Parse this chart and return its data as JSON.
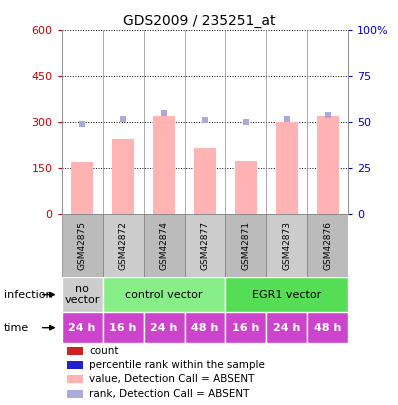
{
  "title": "GDS2009 / 235251_at",
  "samples": [
    "GSM42875",
    "GSM42872",
    "GSM42874",
    "GSM42877",
    "GSM42871",
    "GSM42873",
    "GSM42876"
  ],
  "bar_values": [
    170,
    245,
    320,
    215,
    175,
    300,
    320
  ],
  "rank_values": [
    49,
    52,
    55,
    51,
    50,
    52,
    54
  ],
  "ylim_left": [
    0,
    600
  ],
  "ylim_right": [
    0,
    100
  ],
  "yticks_left": [
    0,
    150,
    300,
    450,
    600
  ],
  "yticks_right": [
    0,
    25,
    50,
    75,
    100
  ],
  "bar_color_absent": "#ffb3b3",
  "rank_color_absent": "#aaaadd",
  "infection_data": [
    {
      "label": "no\nvector",
      "start": 0,
      "end": 1,
      "color": "#cccccc"
    },
    {
      "label": "control vector",
      "start": 1,
      "end": 4,
      "color": "#88ee88"
    },
    {
      "label": "EGR1 vector",
      "start": 4,
      "end": 7,
      "color": "#55dd55"
    }
  ],
  "time_labels": [
    "24 h",
    "16 h",
    "24 h",
    "48 h",
    "16 h",
    "24 h",
    "48 h"
  ],
  "time_color": "#cc44cc",
  "legend_items": [
    {
      "color": "#cc2222",
      "label": "count"
    },
    {
      "color": "#2222cc",
      "label": "percentile rank within the sample"
    },
    {
      "color": "#ffb3b3",
      "label": "value, Detection Call = ABSENT"
    },
    {
      "color": "#aaaadd",
      "label": "rank, Detection Call = ABSENT"
    }
  ],
  "left_axis_color": "#cc0000",
  "right_axis_color": "#0000cc",
  "background_color": "#ffffff",
  "sample_bg_color": "#cccccc",
  "n_samples": 7
}
